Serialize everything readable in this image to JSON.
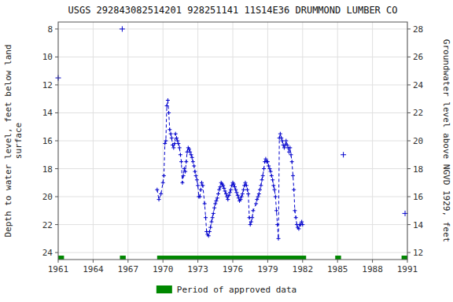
{
  "chart_data": {
    "type": "line",
    "title": "USGS 292843082514201 928251141 11S14E36 DRUMMOND LUMBER CO",
    "ylabel": "Depth to water level, feet below land\nsurface",
    "y2label": "Groundwater level above NGVD 1929, feet",
    "xlim": [
      1961,
      1991
    ],
    "xticks": [
      1961,
      1964,
      1967,
      1970,
      1973,
      1976,
      1979,
      1982,
      1985,
      1988,
      1991
    ],
    "ylim": [
      24.5,
      7.5
    ],
    "yticks": [
      8,
      10,
      12,
      14,
      16,
      18,
      20,
      22,
      24
    ],
    "y2lim": [
      11.5,
      28.5
    ],
    "y2ticks": [
      12,
      14,
      16,
      18,
      20,
      22,
      24,
      26,
      28
    ],
    "grid": true,
    "legend": "bottom",
    "series": [
      {
        "color": "#0000cc",
        "marker": "plus",
        "line_style": "none",
        "x": [
          1961.0
        ],
        "values": [
          11.5
        ]
      },
      {
        "color": "#0000cc",
        "marker": "plus",
        "line_style": "none",
        "x": [
          1966.5
        ],
        "values": [
          8.0
        ]
      },
      {
        "color": "#0000cc",
        "marker": "plus",
        "line_style": "dashed",
        "x": [
          1969.5,
          1969.65,
          1969.83,
          1970.0,
          1970.08,
          1970.17,
          1970.25,
          1970.33,
          1970.42,
          1970.5,
          1970.58,
          1970.67,
          1970.75,
          1970.83,
          1970.92,
          1971.0,
          1971.08,
          1971.17,
          1971.25,
          1971.33,
          1971.42,
          1971.5,
          1971.58,
          1971.67,
          1971.75,
          1971.83,
          1971.92,
          1972.0,
          1972.08,
          1972.17,
          1972.25,
          1972.33,
          1972.42,
          1972.5,
          1972.58,
          1972.67,
          1972.75,
          1972.83,
          1972.92,
          1973.0,
          1973.08,
          1973.17,
          1973.25,
          1973.33,
          1973.42,
          1973.58,
          1973.67,
          1973.75,
          1973.83,
          1973.92,
          1974.0,
          1974.08,
          1974.17,
          1974.25,
          1974.33,
          1974.42,
          1974.5,
          1974.58,
          1974.67,
          1974.75,
          1974.83,
          1974.92,
          1975.0,
          1975.08,
          1975.17,
          1975.25,
          1975.33,
          1975.42,
          1975.5,
          1975.58,
          1975.67,
          1975.75,
          1975.83,
          1975.92,
          1976.0,
          1976.08,
          1976.17,
          1976.25,
          1976.33,
          1976.42,
          1976.5,
          1976.58,
          1976.67,
          1976.75,
          1976.83,
          1976.92,
          1977.0,
          1977.08,
          1977.17,
          1977.25,
          1977.33,
          1977.42,
          1977.5,
          1977.58,
          1977.67,
          1977.75,
          1978.0,
          1978.08,
          1978.17,
          1978.25,
          1978.33,
          1978.42,
          1978.5,
          1978.58,
          1978.67,
          1978.75,
          1978.83,
          1978.92,
          1979.0,
          1979.08,
          1979.17,
          1979.25,
          1979.33,
          1979.42,
          1979.5,
          1979.58,
          1979.67,
          1979.75,
          1979.83,
          1979.92,
          1980.0,
          1980.08,
          1980.17,
          1980.25,
          1980.33,
          1980.42,
          1980.5,
          1980.58,
          1980.67,
          1980.75,
          1980.83,
          1980.92,
          1981.0,
          1981.08,
          1981.17,
          1981.25,
          1981.33,
          1981.42,
          1981.5,
          1981.58,
          1981.67,
          1981.75,
          1981.83,
          1981.92,
          1982.0
        ],
        "values": [
          19.5,
          20.2,
          19.8,
          19.0,
          18.5,
          16.2,
          16.0,
          13.5,
          13.1,
          14.0,
          15.2,
          15.5,
          15.8,
          16.3,
          16.5,
          16.2,
          15.5,
          15.8,
          16.0,
          16.2,
          16.5,
          17.0,
          17.5,
          19.0,
          18.5,
          18.0,
          18.2,
          17.5,
          16.8,
          16.5,
          16.6,
          16.8,
          17.0,
          17.2,
          17.5,
          17.8,
          18.2,
          18.5,
          18.8,
          19.2,
          20.0,
          20.0,
          19.5,
          19.0,
          19.2,
          20.5,
          21.5,
          22.5,
          22.7,
          22.8,
          22.5,
          22.2,
          21.8,
          21.5,
          21.2,
          20.8,
          20.5,
          20.3,
          20.1,
          19.8,
          19.5,
          19.3,
          19.0,
          19.1,
          19.2,
          19.4,
          19.6,
          19.8,
          20.0,
          20.2,
          19.9,
          19.7,
          19.5,
          19.2,
          19.0,
          19.1,
          19.3,
          19.5,
          19.7,
          19.9,
          20.1,
          20.3,
          20.2,
          20.0,
          19.8,
          19.5,
          19.2,
          19.0,
          19.2,
          19.5,
          19.8,
          21.5,
          22.0,
          21.8,
          21.5,
          21.0,
          20.5,
          20.2,
          20.0,
          19.8,
          19.5,
          19.2,
          18.8,
          18.5,
          18.0,
          17.5,
          17.3,
          17.5,
          17.5,
          17.8,
          18.0,
          18.2,
          18.5,
          18.8,
          19.2,
          19.5,
          20.0,
          21.0,
          22.0,
          23.0,
          15.8,
          15.5,
          15.8,
          16.0,
          16.3,
          16.5,
          16.3,
          16.0,
          16.3,
          16.5,
          16.8,
          16.5,
          17.0,
          17.5,
          18.5,
          19.5,
          21.0,
          21.5,
          22.0,
          22.2,
          22.3,
          22.0,
          22.0,
          21.8,
          22.0
        ]
      },
      {
        "color": "#0000cc",
        "marker": "plus",
        "line_style": "none",
        "x": [
          1985.5
        ],
        "values": [
          17.0
        ]
      },
      {
        "color": "#0000cc",
        "marker": "plus",
        "line_style": "none",
        "x": [
          1990.8
        ],
        "values": [
          21.2
        ]
      }
    ],
    "periods": {
      "name": "Period of approved data",
      "color": "#008800",
      "y": [
        24.22,
        24.5
      ],
      "ranges": [
        [
          1961.0,
          1961.5
        ],
        [
          1966.3,
          1966.8
        ],
        [
          1969.5,
          1982.3
        ],
        [
          1984.8,
          1985.3
        ],
        [
          1990.5,
          1991.0
        ]
      ]
    }
  }
}
